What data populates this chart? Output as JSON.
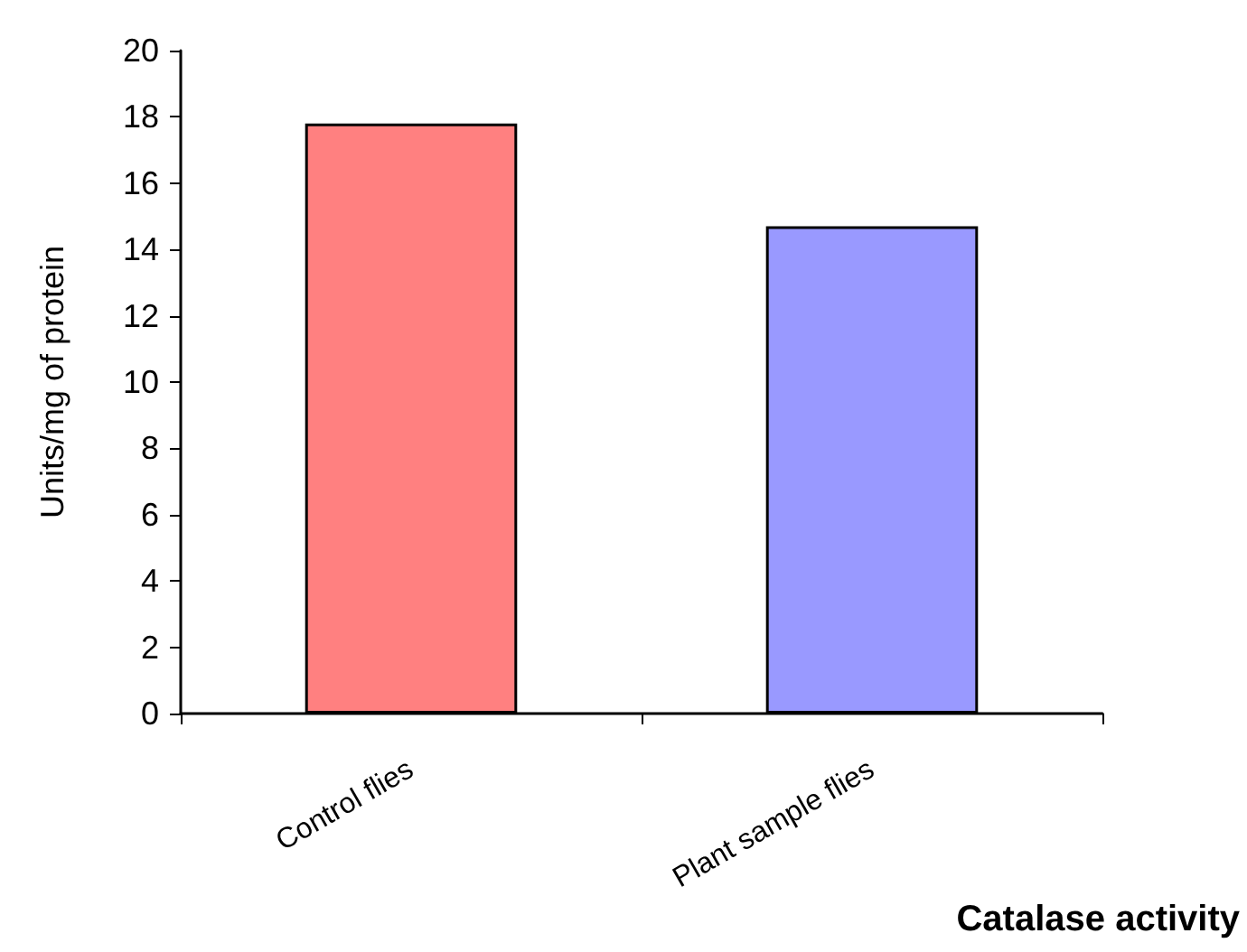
{
  "chart_data": {
    "type": "bar",
    "xlabel": "Catalase activity",
    "ylabel": "Units/mg of protein",
    "categories": [
      "Control flies",
      "Plant sample flies"
    ],
    "values": [
      17.8,
      14.7
    ],
    "colors": [
      "#ff8080",
      "#9999ff"
    ],
    "ylim": [
      0,
      20
    ],
    "yticks": [
      0,
      2,
      4,
      6,
      8,
      10,
      12,
      14,
      16,
      18,
      20
    ],
    "grid": false
  }
}
